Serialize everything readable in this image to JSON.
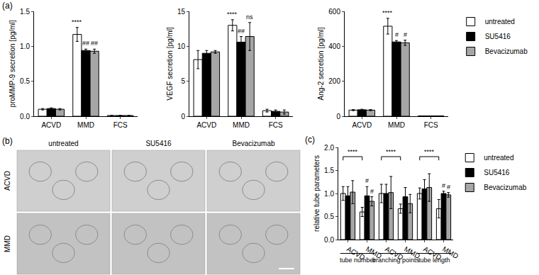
{
  "panels": [
    {
      "label": "(a)"
    },
    {
      "label": "(b)"
    },
    {
      "label": "(c)"
    }
  ],
  "images": {
    "columns": [
      "untreated",
      "SU5416",
      "Bevacizumab"
    ],
    "rows": [
      "ACVD",
      "MMD"
    ]
  },
  "chart_data": [
    {
      "type": "bar",
      "y_label": "proMMP-9 secretion [pg/ml]",
      "categories": [
        "ACVD",
        "MMD",
        "FCS"
      ],
      "ylim": [
        0,
        1.5
      ],
      "yticks": [
        {
          "value": 0,
          "label": "0.0"
        },
        0.5,
        {
          "value": 1,
          "label": "1.0"
        },
        1.5
      ],
      "series": [
        {
          "name": "untreated",
          "color": "#ffffff",
          "values": [
            0.1,
            1.17,
            0.01
          ],
          "errors": [
            0.01,
            0.1,
            0.0
          ]
        },
        {
          "name": "SU5416",
          "color": "#000000",
          "values": [
            0.11,
            0.94,
            0.01
          ],
          "errors": [
            0.01,
            0.02,
            0.0
          ]
        },
        {
          "name": "Bevacizumab",
          "color": "#a6a6a6",
          "values": [
            0.1,
            0.93,
            0.01
          ],
          "errors": [
            0.01,
            0.03,
            0.0
          ]
        }
      ],
      "annotations": [
        {
          "text": "****",
          "category": "MMD",
          "series": "untreated"
        },
        {
          "text": "##",
          "category": "MMD",
          "series": "SU5416"
        },
        {
          "text": "##",
          "category": "MMD",
          "series": "Bevacizumab"
        }
      ]
    },
    {
      "type": "bar",
      "y_label": "VEGF secretion [pg/ml]",
      "categories": [
        "ACVD",
        "MMD",
        "FCS"
      ],
      "ylim": [
        0,
        15
      ],
      "yticks": [
        0,
        5,
        10,
        15
      ],
      "series": [
        {
          "name": "untreated",
          "color": "#ffffff",
          "values": [
            8.1,
            13.0,
            0.8
          ],
          "errors": [
            1.3,
            0.8,
            0.2
          ]
        },
        {
          "name": "SU5416",
          "color": "#000000",
          "values": [
            9.0,
            10.6,
            0.7
          ],
          "errors": [
            0.4,
            0.8,
            0.2
          ]
        },
        {
          "name": "Bevacizumab",
          "color": "#a6a6a6",
          "values": [
            9.2,
            11.4,
            0.6
          ],
          "errors": [
            0.2,
            2.0,
            0.3
          ]
        }
      ],
      "annotations": [
        {
          "text": "****",
          "category": "MMD",
          "series": "untreated"
        },
        {
          "text": "##",
          "category": "MMD",
          "series": "SU5416"
        },
        {
          "text": "ns",
          "category": "MMD",
          "series": "Bevacizumab"
        }
      ]
    },
    {
      "type": "bar",
      "y_label": "Ang-2 secretion [pg/ml]",
      "categories": [
        "ACVD",
        "MMD",
        "FCS"
      ],
      "ylim": [
        0,
        600
      ],
      "yticks": [
        0,
        200,
        400,
        600
      ],
      "legend": "top right",
      "series": [
        {
          "name": "untreated",
          "color": "#ffffff",
          "values": [
            35,
            515,
            2
          ],
          "errors": [
            3,
            45,
            0
          ]
        },
        {
          "name": "SU5416",
          "color": "#000000",
          "values": [
            37,
            425,
            2
          ],
          "errors": [
            3,
            8,
            0
          ]
        },
        {
          "name": "Bevacizumab",
          "color": "#a6a6a6",
          "values": [
            35,
            420,
            2
          ],
          "errors": [
            3,
            15,
            0
          ]
        }
      ],
      "annotations": [
        {
          "text": "****",
          "category": "MMD",
          "series": "untreated"
        },
        {
          "text": "#",
          "category": "MMD",
          "series": "SU5416"
        },
        {
          "text": "#",
          "category": "MMD",
          "series": "Bevacizumab"
        }
      ]
    },
    {
      "type": "bar",
      "y_label": "relative tube parameters",
      "categories": [
        "ACVD",
        "MMD",
        "ACVD",
        "MMD",
        "ACVD",
        "MMD"
      ],
      "groups": [
        "tube number",
        "tube number",
        "branching points",
        "branching points",
        "tube length",
        "tube length"
      ],
      "ylim": [
        0,
        2
      ],
      "yticks": [
        {
          "value": 0,
          "label": "0.0"
        },
        0.5,
        {
          "value": 1,
          "label": "1.0"
        },
        1.5,
        {
          "value": 2,
          "label": "2.0"
        }
      ],
      "legend": "top right",
      "series": [
        {
          "name": "untreated",
          "color": "#ffffff",
          "values": [
            1.0,
            0.6,
            1.0,
            0.67,
            1.0,
            0.67
          ],
          "errors": [
            0.15,
            0.1,
            0.2,
            0.1,
            0.12,
            0.2
          ]
        },
        {
          "name": "SU5416",
          "color": "#000000",
          "values": [
            0.95,
            0.95,
            1.0,
            0.93,
            1.1,
            1.0
          ],
          "errors": [
            0.2,
            0.2,
            0.2,
            0.2,
            0.2,
            0.05
          ]
        },
        {
          "name": "Bevacizumab",
          "color": "#a6a6a6",
          "values": [
            1.03,
            0.83,
            1.02,
            0.78,
            1.13,
            0.97
          ],
          "errors": [
            0.25,
            0.1,
            0.35,
            0.2,
            0.3,
            0.05
          ]
        }
      ],
      "annotations": [
        {
          "text": "****",
          "group": "tube number",
          "series": "untreated"
        },
        {
          "text": "****",
          "group": "branching points",
          "series": "untreated"
        },
        {
          "text": "****",
          "group": "tube length",
          "series": "untreated"
        },
        {
          "text": "#",
          "group": "tube number",
          "category": "MMD",
          "series": "SU5416"
        },
        {
          "text": "#",
          "group": "tube number",
          "category": "MMD",
          "series": "Bevacizumab"
        },
        {
          "text": "#",
          "group": "tube length",
          "category": "MMD",
          "series": "SU5416"
        },
        {
          "text": "#",
          "group": "tube length",
          "category": "MMD",
          "series": "Bevacizumab"
        }
      ]
    }
  ]
}
